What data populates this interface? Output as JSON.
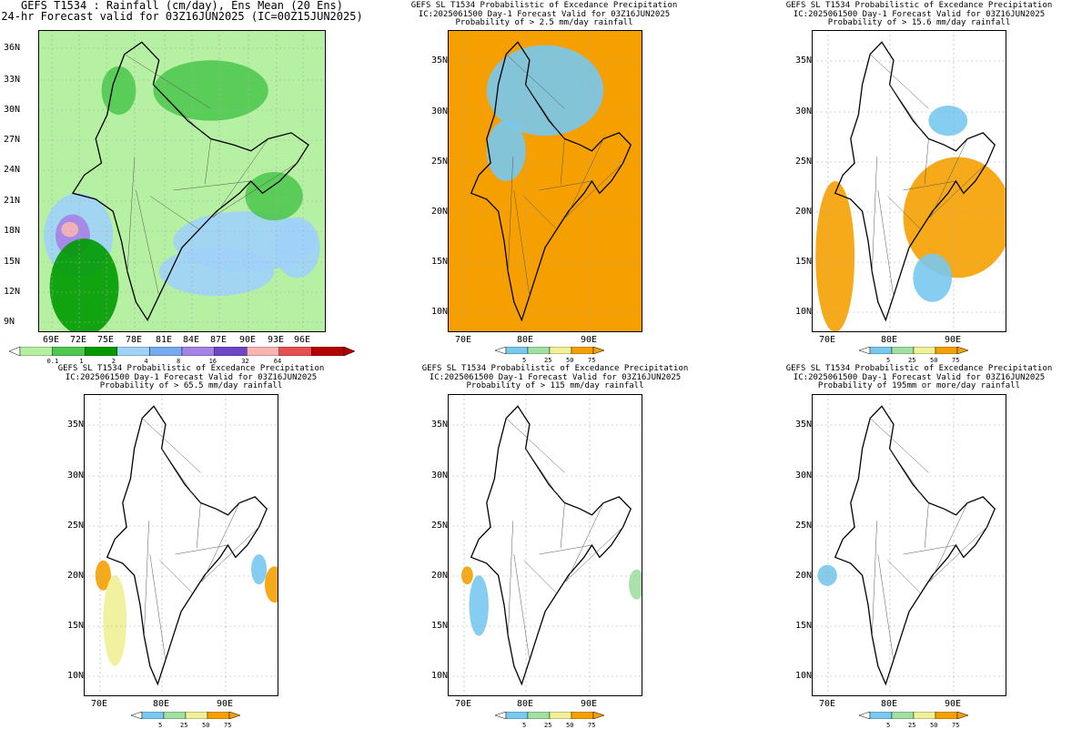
{
  "panels": [
    {
      "title_lines": [
        "GEFS T1534 : Rainfall (cm/day), Ens Mean (20 Ens)",
        "24-hr Forecast valid for 03Z16JUN2025 (IC=00Z15JUN2025)"
      ],
      "lat_ticks": [
        "36N",
        "33N",
        "30N",
        "27N",
        "24N",
        "21N",
        "18N",
        "15N",
        "12N",
        "9N"
      ],
      "lon_ticks": [
        "69E",
        "72E",
        "75E",
        "78E",
        "81E",
        "84E",
        "87E",
        "90E",
        "93E",
        "96E"
      ],
      "colorbar": {
        "labels": [
          "0.1",
          "1",
          "2",
          "4",
          "8",
          "16",
          "32",
          "64"
        ],
        "colors": [
          "#b4f0a0",
          "#50c850",
          "#009a00",
          "#a0d2fa",
          "#78aaf0",
          "#a582e6",
          "#6e46c8",
          "#fab4b4",
          "#e65050",
          "#b40000"
        ]
      }
    },
    {
      "title_lines": [
        "GEFS SL T1534 Probabilistic of Excedance Precipitation",
        "IC:2025061500 Day-1 Forecast Valid for 03Z16JUN2025",
        "Probability of > 2.5 mm/day rainfall"
      ],
      "lat_ticks": [
        "35N",
        "30N",
        "25N",
        "20N",
        "15N",
        "10N"
      ],
      "lon_ticks": [
        "70E",
        "80E",
        "90E"
      ],
      "colorbar": {
        "labels": [
          "5",
          "25",
          "50",
          "75"
        ],
        "colors": [
          "#78c8f0",
          "#a0e0a0",
          "#f0f096",
          "#f5a000"
        ]
      }
    },
    {
      "title_lines": [
        "GEFS SL T1534 Probabilistic of Excedance Precipitation",
        "IC:2025061500 Day-1 Forecast Valid for 03Z16JUN2025",
        "Probability of > 15.6 mm/day rainfall"
      ],
      "lat_ticks": [
        "35N",
        "30N",
        "25N",
        "20N",
        "15N",
        "10N"
      ],
      "lon_ticks": [
        "70E",
        "80E",
        "90E"
      ],
      "colorbar": {
        "labels": [
          "5",
          "25",
          "50",
          "75"
        ],
        "colors": [
          "#78c8f0",
          "#a0e0a0",
          "#f0f096",
          "#f5a000"
        ]
      }
    },
    {
      "title_lines": [
        "GEFS SL T1534 Probabilistic of Excedance Precipitation",
        "IC:2025061500 Day-1 Forecast Valid for 03Z16JUN2025",
        "Probability of > 65.5 mm/day rainfall"
      ],
      "lat_ticks": [
        "35N",
        "30N",
        "25N",
        "20N",
        "15N",
        "10N"
      ],
      "lon_ticks": [
        "70E",
        "80E",
        "90E"
      ],
      "colorbar": {
        "labels": [
          "5",
          "25",
          "50",
          "75"
        ],
        "colors": [
          "#78c8f0",
          "#a0e0a0",
          "#f0f096",
          "#f5a000"
        ]
      }
    },
    {
      "title_lines": [
        "GEFS SL T1534 Probabilistic of Excedance Precipitation",
        "IC:2025061500 Day-1 Forecast Valid for 03Z16JUN2025",
        "Probability of > 115 mm/day rainfall"
      ],
      "lat_ticks": [
        "35N",
        "30N",
        "25N",
        "20N",
        "15N",
        "10N"
      ],
      "lon_ticks": [
        "70E",
        "80E",
        "90E"
      ],
      "colorbar": {
        "labels": [
          "5",
          "25",
          "50",
          "75"
        ],
        "colors": [
          "#78c8f0",
          "#a0e0a0",
          "#f0f096",
          "#f5a000"
        ]
      }
    },
    {
      "title_lines": [
        "GEFS SL T1534 Probabilistic of Excedance Precipitation",
        "IC:2025061500 Day-1 Forecast Valid for 03Z16JUN2025",
        "Probability of 195mm or more/day rainfall"
      ],
      "lat_ticks": [
        "35N",
        "30N",
        "25N",
        "20N",
        "15N",
        "10N"
      ],
      "lon_ticks": [
        "70E",
        "80E",
        "90E"
      ],
      "colorbar": {
        "labels": [
          "5",
          "25",
          "50",
          "75"
        ],
        "colors": [
          "#78c8f0",
          "#a0e0a0",
          "#f0f096",
          "#f5a000"
        ]
      }
    }
  ]
}
